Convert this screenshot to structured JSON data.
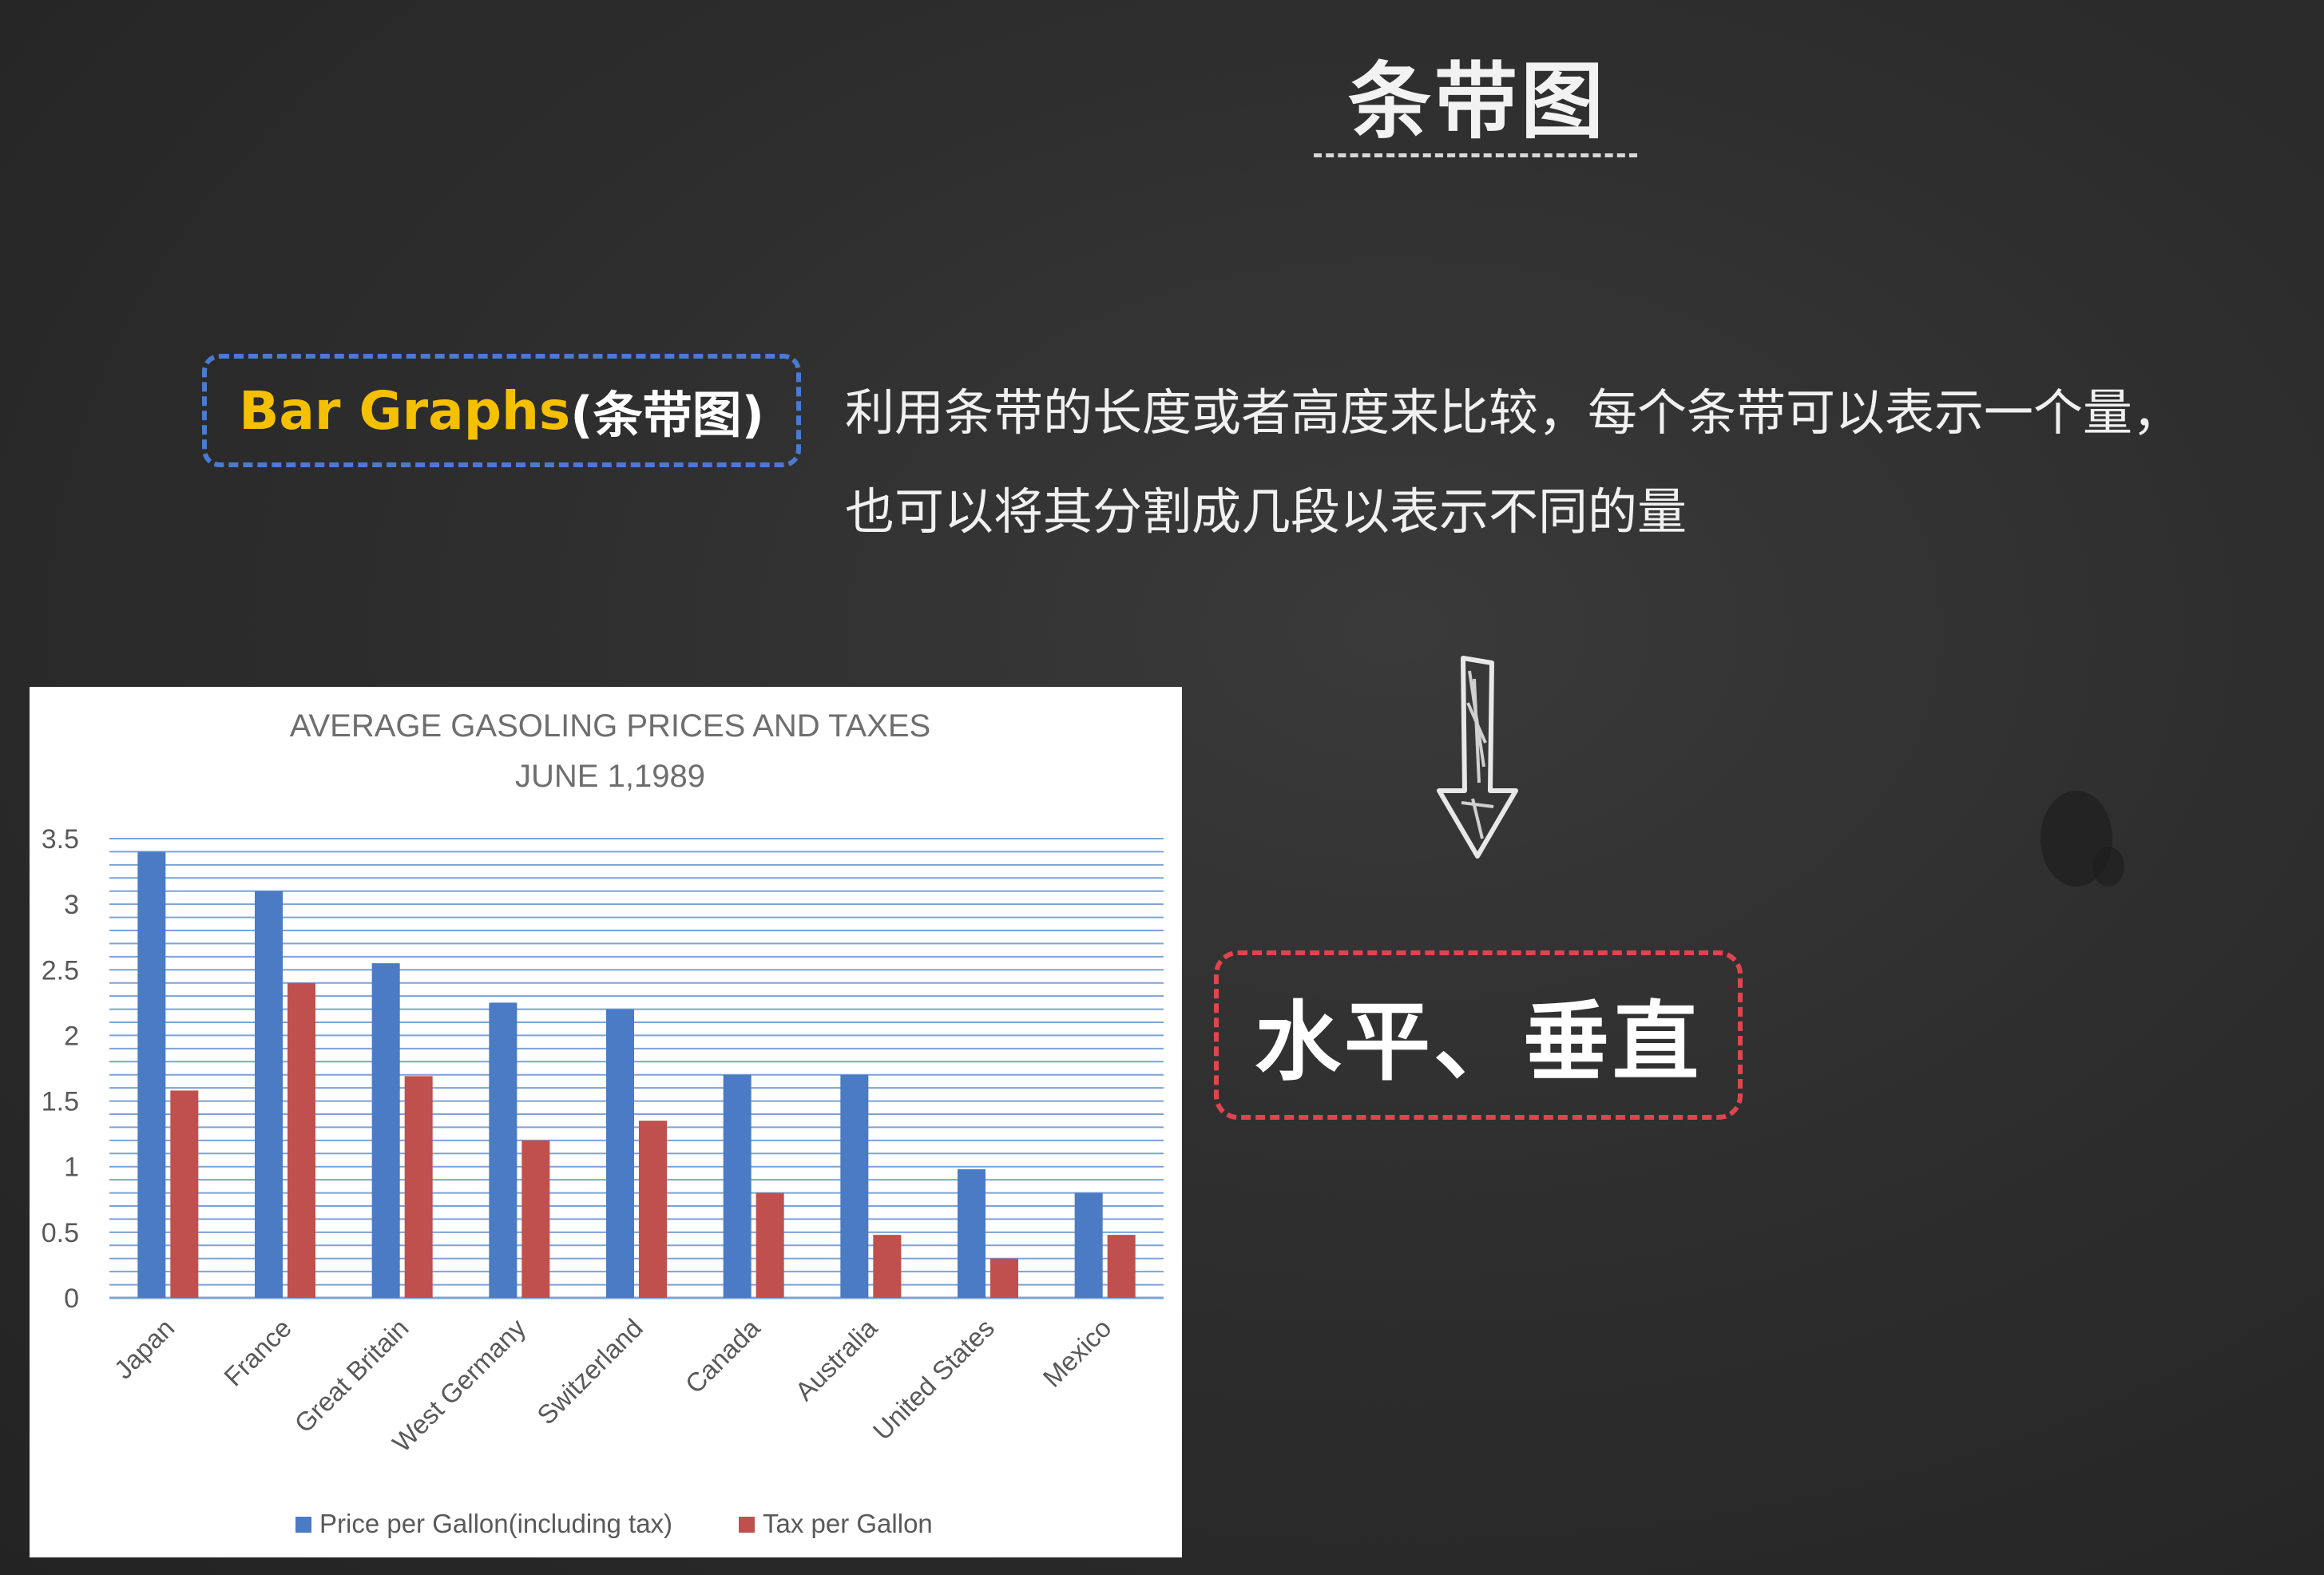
{
  "slide": {
    "title": "条带图",
    "term_en": "Bar Graphs",
    "term_zh": "(条带图)",
    "description_line1": "利用条带的长度或者高度来比较，每个条带可以表示一个量，",
    "description_line2": "也可以将其分割成几段以表示不同的量",
    "orientation": "水平、垂直",
    "colors": {
      "accent_yellow": "#f5c000",
      "box_blue": "#4a7bd0",
      "box_red": "#e0454f"
    }
  },
  "chart_data": {
    "type": "bar",
    "title": "AVERAGE  GASOLING PRICES AND TAXES",
    "subtitle": "JUNE 1,1989",
    "categories": [
      "Japan",
      "France",
      "Great Britain",
      "West Germany",
      "Switzerland",
      "Canada",
      "Australia",
      "United States",
      "Mexico"
    ],
    "series": [
      {
        "name": "Price per Gallon(including tax)",
        "color": "#4a7bc4",
        "values": [
          3.4,
          3.1,
          2.55,
          2.25,
          2.2,
          1.7,
          1.7,
          0.98,
          0.8
        ]
      },
      {
        "name": "Tax per Gallon",
        "color": "#c0504d",
        "values": [
          1.58,
          2.4,
          1.69,
          1.2,
          1.35,
          0.8,
          0.48,
          0.3,
          0.48
        ]
      }
    ],
    "y_ticks": [
      "0",
      "0.5",
      "1",
      "1.5",
      "2",
      "2.5",
      "3",
      "3.5"
    ],
    "ylim": [
      0,
      3.5
    ],
    "grid": true,
    "legend_position": "bottom"
  }
}
